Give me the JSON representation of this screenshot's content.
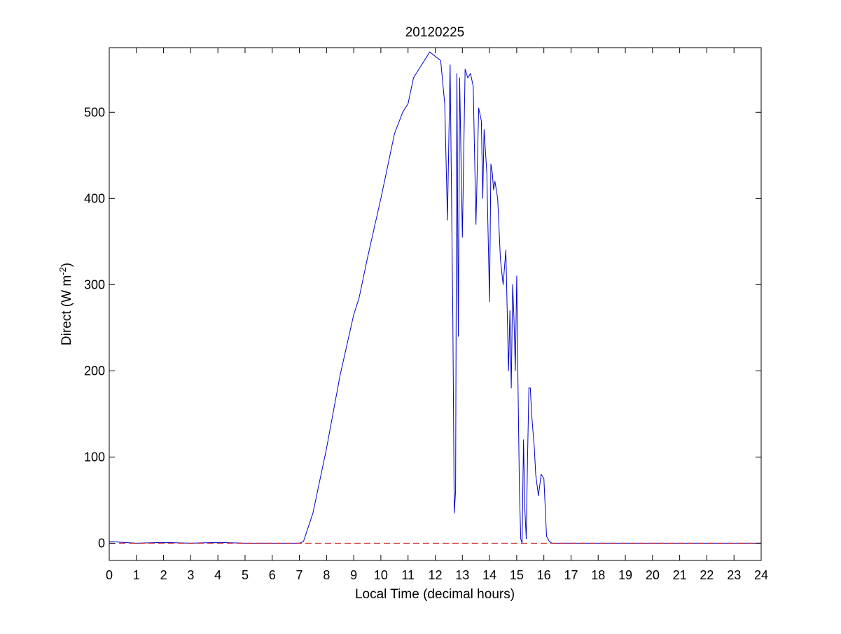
{
  "chart_data": {
    "type": "line",
    "title": "20120225",
    "xlabel": "Local Time (decimal hours)",
    "ylabel_main": "Direct (W m",
    "ylabel_sup": "-2",
    "ylabel_close": ")",
    "xlim": [
      0,
      24
    ],
    "ylim": [
      -20,
      575
    ],
    "xticks": [
      0,
      1,
      2,
      3,
      4,
      5,
      6,
      7,
      8,
      9,
      10,
      11,
      12,
      13,
      14,
      15,
      16,
      17,
      18,
      19,
      20,
      21,
      22,
      23,
      24
    ],
    "yticks": [
      0,
      100,
      200,
      300,
      400,
      500
    ],
    "grid": false,
    "colors": {
      "series": "#0000cc",
      "reference": "#cc0000"
    },
    "series": [
      {
        "line_style": "solid",
        "x": [
          0.0,
          0.5,
          1.0,
          2.0,
          3.0,
          4.0,
          5.0,
          6.0,
          7.0,
          7.15,
          7.5,
          8.0,
          8.5,
          9.0,
          9.2,
          9.5,
          10.0,
          10.2,
          10.5,
          10.8,
          11.0,
          11.2,
          11.5,
          11.8,
          12.0,
          12.2,
          12.35,
          12.45,
          12.55,
          12.65,
          12.7,
          12.75,
          12.8,
          12.85,
          12.9,
          13.0,
          13.1,
          13.2,
          13.3,
          13.4,
          13.5,
          13.6,
          13.7,
          13.75,
          13.8,
          13.9,
          14.0,
          14.05,
          14.1,
          14.15,
          14.2,
          14.3,
          14.4,
          14.5,
          14.6,
          14.7,
          14.75,
          14.8,
          14.85,
          14.9,
          14.95,
          15.0,
          15.05,
          15.1,
          15.15,
          15.2,
          15.25,
          15.3,
          15.35,
          15.4,
          15.45,
          15.5,
          15.55,
          15.6,
          15.65,
          15.7,
          15.8,
          15.9,
          16.0,
          16.1,
          16.2,
          16.3,
          16.4,
          16.5,
          16.6,
          16.7,
          16.8,
          16.9,
          17.0,
          17.5,
          18.0,
          20.0,
          22.0,
          23.0,
          24.0
        ],
        "values": [
          2,
          1,
          0,
          1,
          0,
          1,
          0,
          0,
          0,
          2,
          35,
          110,
          195,
          265,
          285,
          330,
          400,
          430,
          475,
          500,
          510,
          540,
          555,
          570,
          565,
          560,
          510,
          375,
          555,
          260,
          35,
          60,
          545,
          240,
          540,
          355,
          550,
          540,
          545,
          530,
          370,
          505,
          490,
          400,
          480,
          430,
          280,
          440,
          430,
          410,
          420,
          400,
          330,
          300,
          340,
          200,
          270,
          180,
          300,
          260,
          200,
          310,
          180,
          60,
          5,
          0,
          120,
          40,
          5,
          100,
          180,
          180,
          150,
          130,
          110,
          80,
          55,
          80,
          75,
          8,
          2,
          0,
          0,
          0,
          0,
          0,
          0,
          0,
          0,
          0,
          0,
          0,
          0,
          0,
          0
        ]
      },
      {
        "line_style": "dashed",
        "x": [
          0,
          24
        ],
        "values": [
          0,
          0
        ]
      }
    ]
  }
}
